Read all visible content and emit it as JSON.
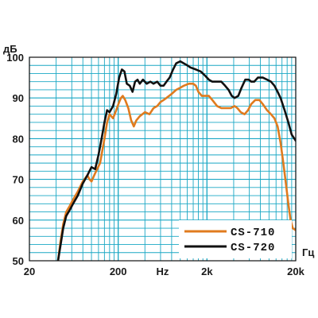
{
  "chart_data": {
    "type": "line",
    "title": "",
    "xlabel": "Гц",
    "ylabel": "дБ",
    "x_scale": "log",
    "xlim": [
      20,
      20000
    ],
    "ylim": [
      50,
      100
    ],
    "x_ticks": [
      "20",
      "200",
      "Hz",
      "2k",
      "20k"
    ],
    "y_ticks": [
      "50",
      "60",
      "70",
      "80",
      "90",
      "100"
    ],
    "grid": true,
    "legend_position": "bottom-right",
    "colors": {
      "grid": "#1aa7c4",
      "background": "#ffffff",
      "frame": "#111111"
    },
    "series": [
      {
        "name": "CS-710",
        "color": "#e07b1e",
        "points": [
          [
            42,
            50
          ],
          [
            45,
            55
          ],
          [
            48,
            59
          ],
          [
            52,
            62
          ],
          [
            57,
            63.5
          ],
          [
            62,
            65
          ],
          [
            70,
            67
          ],
          [
            80,
            69.5
          ],
          [
            90,
            71
          ],
          [
            95,
            70
          ],
          [
            100,
            69.5
          ],
          [
            110,
            71.5
          ],
          [
            125,
            74
          ],
          [
            140,
            80
          ],
          [
            150,
            84
          ],
          [
            160,
            86
          ],
          [
            175,
            85
          ],
          [
            190,
            87
          ],
          [
            205,
            89
          ],
          [
            215,
            90
          ],
          [
            225,
            90.5
          ],
          [
            240,
            89.5
          ],
          [
            260,
            87.5
          ],
          [
            280,
            84.5
          ],
          [
            300,
            83
          ],
          [
            320,
            84.5
          ],
          [
            350,
            85.5
          ],
          [
            400,
            86.5
          ],
          [
            450,
            86
          ],
          [
            500,
            87.5
          ],
          [
            550,
            88
          ],
          [
            600,
            89
          ],
          [
            650,
            89.5
          ],
          [
            700,
            90
          ],
          [
            800,
            91
          ],
          [
            900,
            92
          ],
          [
            1000,
            92.5
          ],
          [
            1100,
            93
          ],
          [
            1250,
            93.5
          ],
          [
            1400,
            93.5
          ],
          [
            1500,
            93
          ],
          [
            1600,
            91.5
          ],
          [
            1750,
            90.5
          ],
          [
            1900,
            90.5
          ],
          [
            2100,
            90.5
          ],
          [
            2300,
            89.5
          ],
          [
            2600,
            88
          ],
          [
            2900,
            87.5
          ],
          [
            3300,
            87.5
          ],
          [
            3700,
            87.5
          ],
          [
            4100,
            88
          ],
          [
            4400,
            87.5
          ],
          [
            4800,
            86.5
          ],
          [
            5300,
            86
          ],
          [
            5800,
            87
          ],
          [
            6300,
            88.5
          ],
          [
            7000,
            89.5
          ],
          [
            7800,
            89.5
          ],
          [
            8500,
            88.5
          ],
          [
            9500,
            87
          ],
          [
            10500,
            86
          ],
          [
            11500,
            85
          ],
          [
            12500,
            83
          ],
          [
            13500,
            79
          ],
          [
            14500,
            74
          ],
          [
            15500,
            69
          ],
          [
            16500,
            64
          ],
          [
            17500,
            60
          ],
          [
            18500,
            58
          ],
          [
            20000,
            57.5
          ]
        ]
      },
      {
        "name": "CS-720",
        "color": "#111111",
        "points": [
          [
            42,
            50
          ],
          [
            45,
            54
          ],
          [
            48,
            58
          ],
          [
            52,
            61
          ],
          [
            57,
            62.5
          ],
          [
            62,
            64
          ],
          [
            70,
            66
          ],
          [
            80,
            69
          ],
          [
            90,
            71
          ],
          [
            100,
            73
          ],
          [
            110,
            72.5
          ],
          [
            120,
            76
          ],
          [
            130,
            80
          ],
          [
            140,
            84
          ],
          [
            150,
            87
          ],
          [
            160,
            86.5
          ],
          [
            175,
            88
          ],
          [
            190,
            91
          ],
          [
            205,
            95
          ],
          [
            220,
            97
          ],
          [
            235,
            96.5
          ],
          [
            250,
            93.5
          ],
          [
            270,
            93
          ],
          [
            290,
            91.5
          ],
          [
            310,
            94
          ],
          [
            330,
            94.5
          ],
          [
            350,
            93.5
          ],
          [
            380,
            94.5
          ],
          [
            420,
            93.5
          ],
          [
            460,
            94
          ],
          [
            500,
            93.5
          ],
          [
            550,
            94
          ],
          [
            600,
            93
          ],
          [
            650,
            93
          ],
          [
            700,
            94
          ],
          [
            760,
            95
          ],
          [
            830,
            97
          ],
          [
            900,
            98.5
          ],
          [
            1000,
            99
          ],
          [
            1100,
            98.5
          ],
          [
            1200,
            98
          ],
          [
            1300,
            97.5
          ],
          [
            1500,
            97
          ],
          [
            1700,
            96.5
          ],
          [
            1900,
            95.5
          ],
          [
            2100,
            94.5
          ],
          [
            2300,
            94
          ],
          [
            2600,
            94
          ],
          [
            2900,
            94
          ],
          [
            3200,
            93
          ],
          [
            3500,
            92
          ],
          [
            3800,
            90.5
          ],
          [
            4100,
            90
          ],
          [
            4500,
            90.5
          ],
          [
            4900,
            92.5
          ],
          [
            5400,
            94.5
          ],
          [
            5900,
            94.5
          ],
          [
            6300,
            94
          ],
          [
            6800,
            94
          ],
          [
            7500,
            95
          ],
          [
            8500,
            95
          ],
          [
            9500,
            94.5
          ],
          [
            10500,
            94
          ],
          [
            11500,
            93
          ],
          [
            12500,
            91.5
          ],
          [
            13500,
            90
          ],
          [
            15000,
            87
          ],
          [
            16500,
            84
          ],
          [
            18000,
            81
          ],
          [
            20000,
            79.5
          ]
        ]
      }
    ]
  }
}
